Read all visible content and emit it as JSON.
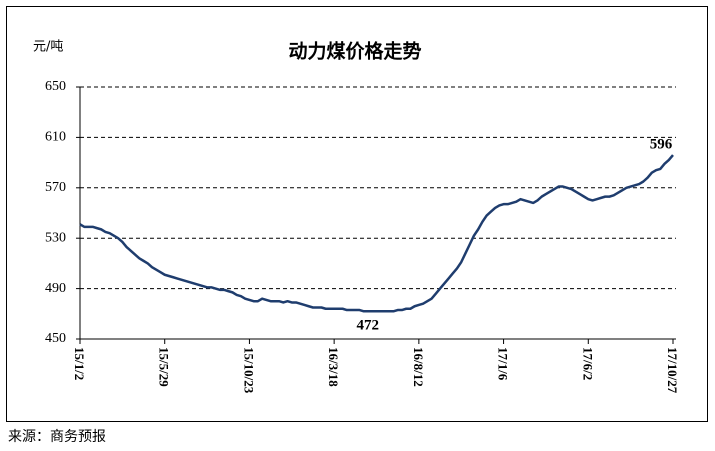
{
  "chart_data": {
    "type": "line",
    "title": "动力煤价格走势",
    "y_label": "元/吨",
    "source": "来源：商务预报",
    "categories": [
      "15/1/2",
      null,
      null,
      null,
      null,
      null,
      null,
      null,
      null,
      null,
      null,
      null,
      null,
      null,
      null,
      null,
      null,
      null,
      null,
      null,
      "15/5/29",
      null,
      null,
      null,
      null,
      null,
      null,
      null,
      null,
      null,
      null,
      null,
      null,
      null,
      null,
      null,
      null,
      null,
      null,
      null,
      "15/10/23",
      null,
      null,
      null,
      null,
      null,
      null,
      null,
      null,
      null,
      null,
      null,
      null,
      null,
      null,
      null,
      null,
      null,
      null,
      null,
      "16/3/18",
      null,
      null,
      null,
      null,
      null,
      null,
      null,
      null,
      null,
      null,
      null,
      null,
      null,
      null,
      null,
      null,
      null,
      null,
      null,
      "16/8/12",
      null,
      null,
      null,
      null,
      null,
      null,
      null,
      null,
      null,
      null,
      null,
      null,
      null,
      null,
      null,
      null,
      null,
      null,
      null,
      "17/1/6",
      null,
      null,
      null,
      null,
      null,
      null,
      null,
      null,
      null,
      null,
      null,
      null,
      null,
      null,
      null,
      null,
      null,
      null,
      null,
      "17/6/2",
      null,
      null,
      null,
      null,
      null,
      null,
      null,
      null,
      null,
      null,
      null,
      null,
      null,
      null,
      null,
      null,
      null,
      null,
      null,
      "17/10/27"
    ],
    "values": [
      541,
      539,
      539,
      539,
      538,
      537,
      535,
      534,
      532,
      530,
      527,
      523,
      520,
      517,
      514,
      512,
      510,
      507,
      505,
      503,
      501,
      500,
      499,
      498,
      497,
      496,
      495,
      494,
      493,
      492,
      491,
      491,
      490,
      489,
      489,
      488,
      487,
      485,
      484,
      482,
      481,
      480,
      480,
      482,
      481,
      480,
      480,
      480,
      479,
      480,
      479,
      479,
      478,
      477,
      476,
      475,
      475,
      475,
      474,
      474,
      474,
      474,
      474,
      473,
      473,
      473,
      473,
      472,
      472,
      472,
      472,
      472,
      472,
      472,
      472,
      473,
      473,
      474,
      474,
      476,
      477,
      478,
      480,
      482,
      486,
      490,
      494,
      498,
      502,
      506,
      511,
      518,
      525,
      532,
      537,
      543,
      548,
      551,
      554,
      556,
      557,
      557,
      558,
      559,
      561,
      560,
      559,
      558,
      560,
      563,
      565,
      567,
      569,
      571,
      571,
      570,
      569,
      567,
      565,
      563,
      561,
      560,
      561,
      562,
      563,
      563,
      564,
      566,
      568,
      570,
      571,
      572,
      573,
      575,
      578,
      582,
      584,
      585,
      589,
      592,
      596
    ],
    "color": "#1f3d6e",
    "ylim": [
      450,
      650
    ],
    "yticks": [
      450,
      490,
      530,
      570,
      610,
      650
    ],
    "grid": true
  }
}
